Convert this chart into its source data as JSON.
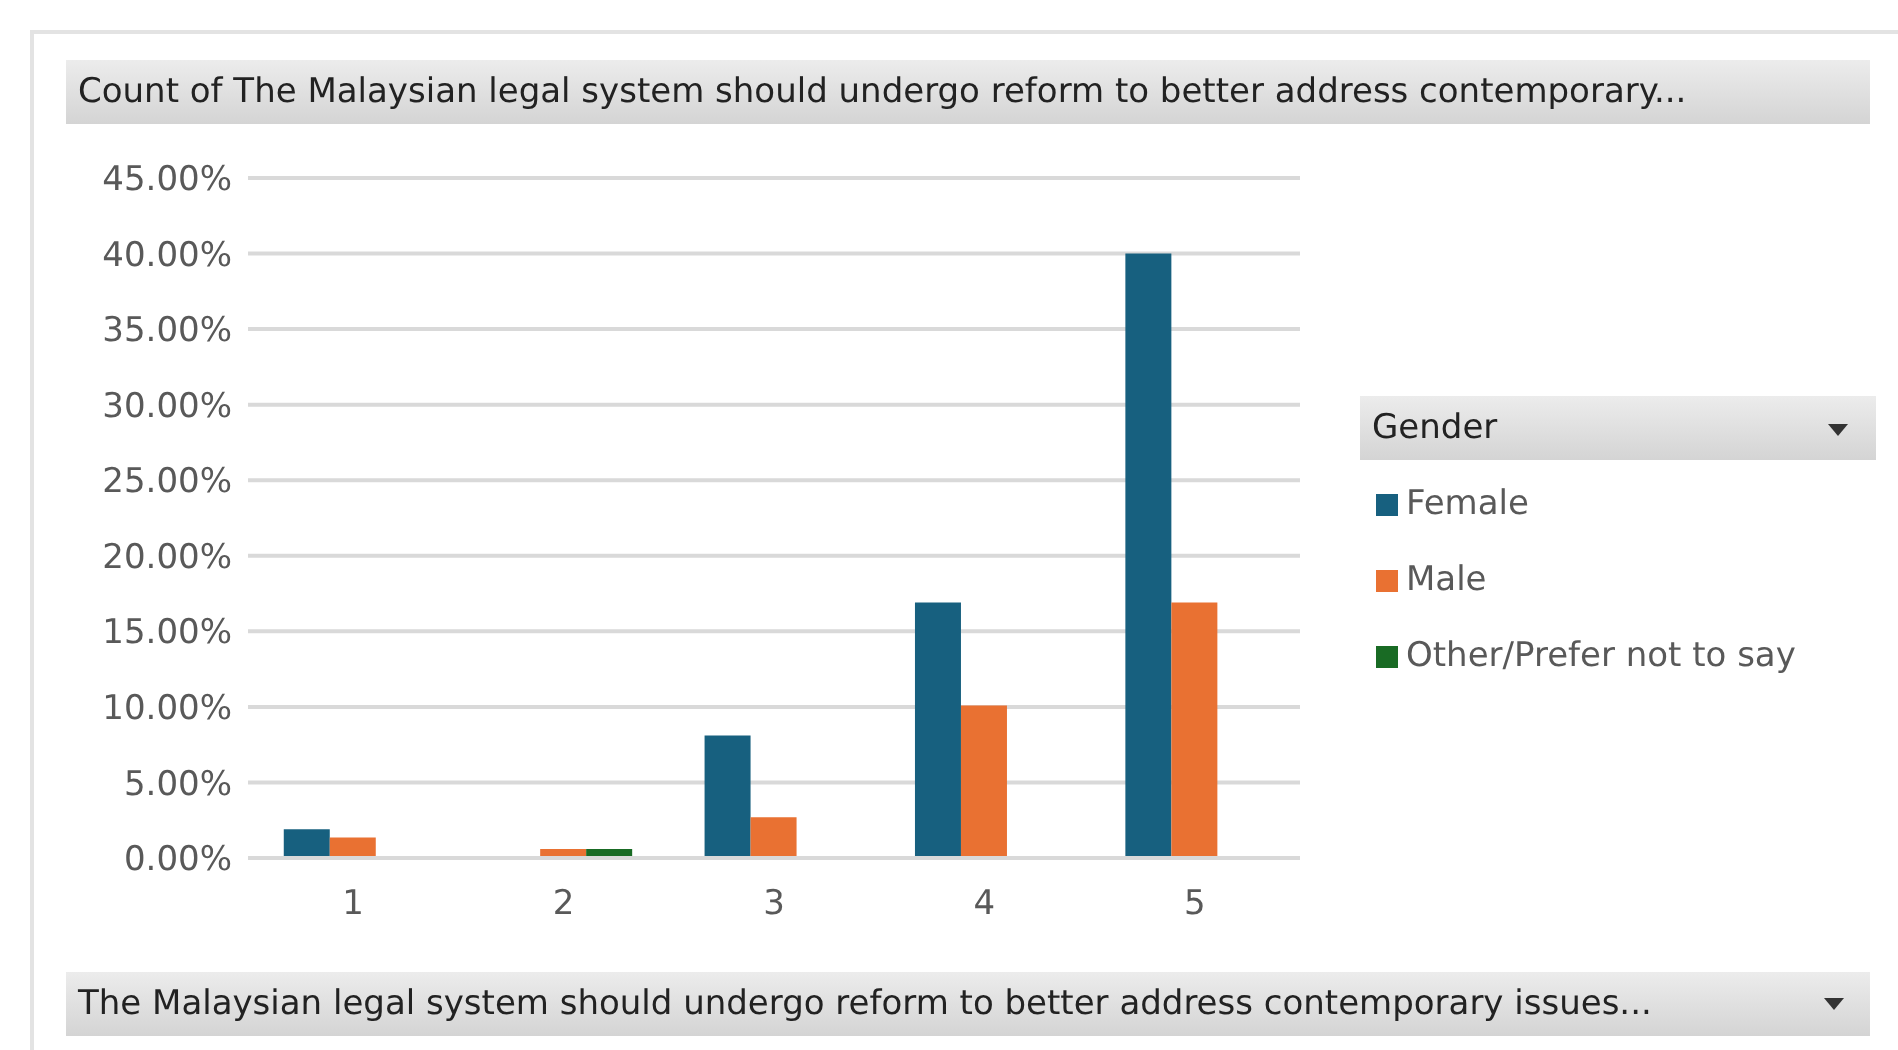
{
  "chart_data": {
    "type": "bar",
    "title": "Count of The Malaysian legal system should undergo reform to better address contemporary...",
    "xlabel": "The Malaysian legal system should undergo reform to better address contemporary issues...",
    "legend_title": "Gender",
    "categories": [
      "1",
      "2",
      "3",
      "4",
      "5"
    ],
    "series": [
      {
        "name": "Female",
        "color": "#17607f",
        "values": [
          1.9,
          0,
          8.1,
          16.9,
          40.0
        ]
      },
      {
        "name": "Male",
        "color": "#e97132",
        "values": [
          1.35,
          0.6,
          2.7,
          10.1,
          16.9
        ]
      },
      {
        "name": "Other/Prefer not to say",
        "color": "#196b24",
        "values": [
          0,
          0.6,
          0,
          0,
          0
        ]
      }
    ],
    "ylim": [
      0,
      45
    ],
    "yticks": [
      {
        "value": 0,
        "label": "0.00%"
      },
      {
        "value": 5,
        "label": "5.00%"
      },
      {
        "value": 10,
        "label": "10.00%"
      },
      {
        "value": 15,
        "label": "15.00%"
      },
      {
        "value": 20,
        "label": "20.00%"
      },
      {
        "value": 25,
        "label": "25.00%"
      },
      {
        "value": 30,
        "label": "30.00%"
      },
      {
        "value": 35,
        "label": "35.00%"
      },
      {
        "value": 40,
        "label": "40.00%"
      },
      {
        "value": 45,
        "label": "45.00%"
      }
    ],
    "grid": "y",
    "legend": "right"
  }
}
